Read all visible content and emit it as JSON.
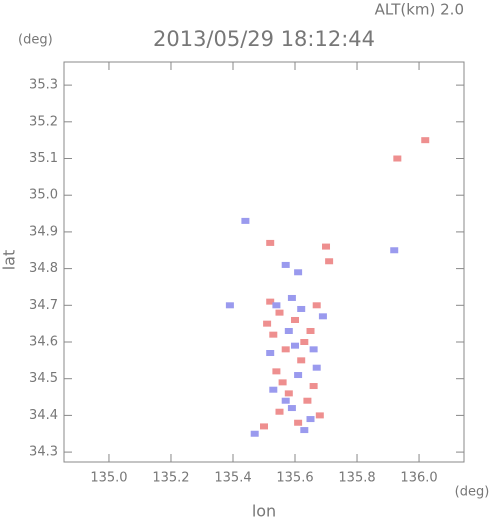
{
  "chart_data": {
    "type": "scatter",
    "title": "2013/05/29 18:12:44",
    "subtitle": "ALT(km) 2.0",
    "x_label": "lon",
    "y_label": "lat",
    "x_unit": "(deg)",
    "y_unit": "(deg)",
    "xlim": [
      134.855,
      136.145
    ],
    "ylim": [
      34.273,
      35.363
    ],
    "xticks": [
      {
        "value": 135,
        "label": "135.0"
      },
      135.2,
      135.4,
      135.6,
      135.8,
      {
        "value": 136,
        "label": "136.0"
      }
    ],
    "yticks": [
      34.3,
      34.4,
      34.5,
      34.6,
      34.7,
      34.8,
      34.9,
      {
        "value": 35,
        "label": "35.0"
      },
      35.1,
      35.2,
      35.3
    ],
    "series": [
      {
        "color": "#ee8f8f",
        "x": [
          135.52,
          135.55,
          135.67,
          135.53,
          135.57,
          135.65,
          135.62,
          135.54,
          135.58,
          135.64,
          135.55,
          135.61,
          135.5,
          135.66,
          135.6,
          135.71,
          135.7,
          135.52,
          136.02,
          135.93,
          135.68,
          135.56,
          135.63,
          135.51
        ],
        "values": [
          34.71,
          34.68,
          34.7,
          34.62,
          34.58,
          34.63,
          34.55,
          34.52,
          34.46,
          34.44,
          34.41,
          34.38,
          34.37,
          34.48,
          34.66,
          34.82,
          34.86,
          34.87,
          35.15,
          35.1,
          34.4,
          34.49,
          34.6,
          34.65
        ]
      },
      {
        "color": "#9a9aee",
        "x": [
          135.54,
          135.59,
          135.69,
          135.58,
          135.66,
          135.52,
          135.61,
          135.57,
          135.65,
          135.63,
          135.59,
          135.67,
          135.61,
          135.57,
          135.92,
          135.44,
          135.39,
          135.53,
          135.6,
          135.47,
          135.62
        ],
        "values": [
          34.7,
          34.72,
          34.67,
          34.63,
          34.58,
          34.57,
          34.51,
          34.44,
          34.39,
          34.36,
          34.42,
          34.53,
          34.79,
          34.81,
          34.85,
          34.93,
          34.7,
          34.47,
          34.59,
          34.35,
          34.69
        ]
      }
    ]
  }
}
